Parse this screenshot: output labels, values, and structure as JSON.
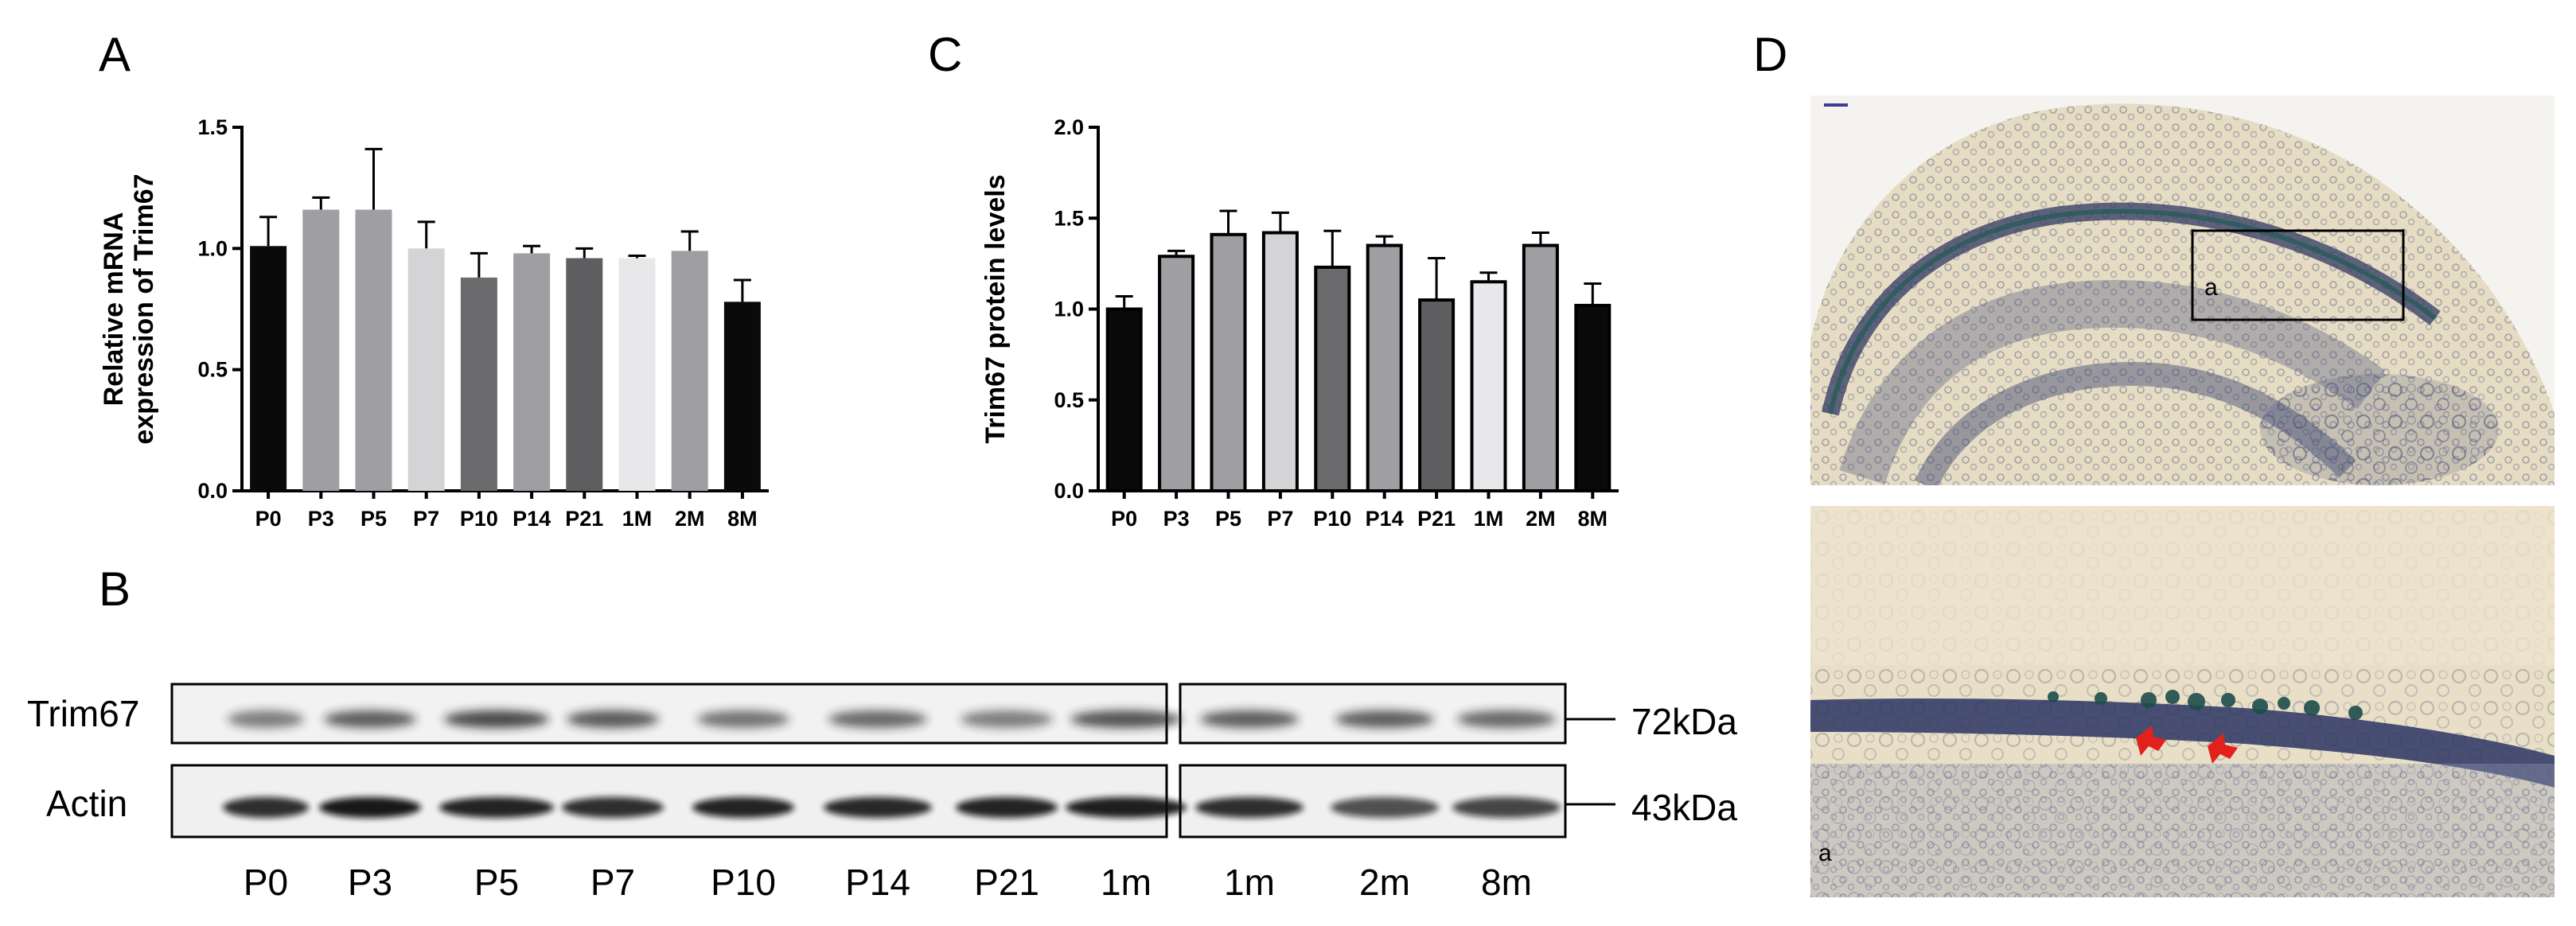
{
  "panels": {
    "A": "A",
    "B": "B",
    "C": "C",
    "D": "D"
  },
  "chart_data": [
    {
      "type": "bar",
      "panel": "A",
      "ylabel_line1": "Relative mRNA",
      "ylabel_line2": "expression of Trim67",
      "categories": [
        "P0",
        "P3",
        "P5",
        "P7",
        "P10",
        "P14",
        "P21",
        "1M",
        "2M",
        "8M"
      ],
      "values": [
        1.01,
        1.16,
        1.16,
        1.0,
        0.88,
        0.98,
        0.96,
        0.96,
        0.99,
        0.78
      ],
      "errors": [
        0.12,
        0.05,
        0.25,
        0.11,
        0.1,
        0.03,
        0.04,
        0.01,
        0.08,
        0.09
      ],
      "colors": [
        "#0a0a0a",
        "#9e9ea3",
        "#9e9ea3",
        "#d4d4d6",
        "#6b6b6e",
        "#9e9ea3",
        "#5e5e61",
        "#e8e8ea",
        "#9e9ea3",
        "#0a0a0a"
      ],
      "ylim": [
        0,
        1.5
      ],
      "yticks": [
        "0.0",
        "0.5",
        "1.0",
        "1.5"
      ]
    },
    {
      "type": "bar",
      "panel": "C",
      "ylabel": "Trim67 protein levels",
      "categories": [
        "P0",
        "P3",
        "P5",
        "P7",
        "P10",
        "P14",
        "P21",
        "1M",
        "2M",
        "8M"
      ],
      "values": [
        1.0,
        1.29,
        1.41,
        1.42,
        1.23,
        1.35,
        1.05,
        1.15,
        1.35,
        1.02
      ],
      "errors": [
        0.07,
        0.03,
        0.13,
        0.11,
        0.2,
        0.05,
        0.23,
        0.05,
        0.07,
        0.12
      ],
      "colors": [
        "#0a0a0a",
        "#9e9ea3",
        "#9e9ea3",
        "#d4d4d6",
        "#6b6b6e",
        "#9e9ea3",
        "#5e5e61",
        "#e8e8ea",
        "#9e9ea3",
        "#0a0a0a"
      ],
      "ylim": [
        0,
        2.0
      ],
      "yticks": [
        "0.0",
        "0.5",
        "1.0",
        "1.5",
        "2.0"
      ]
    }
  ],
  "western_blot": {
    "rows": [
      {
        "label": "Trim67",
        "marker": "72kDa"
      },
      {
        "label": "Actin",
        "marker": "43kDa"
      }
    ],
    "lanes": [
      "P0",
      "P3",
      "P5",
      "P7",
      "P10",
      "P14",
      "P21",
      "1m",
      "1m",
      "2m",
      "8m"
    ]
  },
  "micrograph": {
    "box_label": "a",
    "inset_label": "a"
  }
}
